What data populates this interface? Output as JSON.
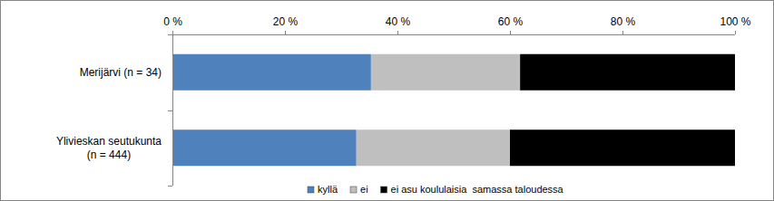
{
  "chart_data": {
    "type": "bar",
    "orientation": "horizontal",
    "stacked": true,
    "categories": [
      "Merijärvi  (n = 34)",
      "Ylivieskan seutukunta\n(n = 444)"
    ],
    "series": [
      {
        "name": "kyllä",
        "color": "#4f81bd",
        "values": [
          35.3,
          32.7
        ]
      },
      {
        "name": "ei",
        "color": "#bfbfbf",
        "values": [
          26.5,
          27.3
        ]
      },
      {
        "name": "ei asu koululaisia  samassa taloudessa",
        "color": "#000000",
        "values": [
          38.2,
          40.0
        ]
      }
    ],
    "xlim": [
      0,
      100
    ],
    "xticks": [
      {
        "value": 0,
        "label": "0 %"
      },
      {
        "value": 20,
        "label": "20 %"
      },
      {
        "value": 40,
        "label": "40 %"
      },
      {
        "value": 60,
        "label": "60 %"
      },
      {
        "value": 80,
        "label": "80 %"
      },
      {
        "value": 100,
        "label": "100 %"
      }
    ],
    "grid": false,
    "legend": "bottom"
  }
}
